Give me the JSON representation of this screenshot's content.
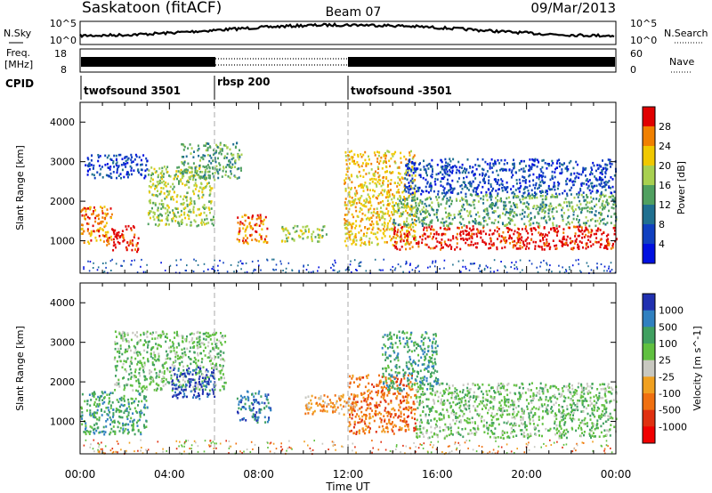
{
  "header": {
    "station": "Saskatoon (fitACF)",
    "beam": "Beam 07",
    "date": "09/Mar/2013"
  },
  "strips": {
    "nsky_label": "N.Sky",
    "nsky_ticks": [
      "10^5",
      "10^0"
    ],
    "nsearch_label": "N.Search",
    "nsearch_ticks": [
      "10^5",
      "10^0"
    ],
    "freq_label": "Freq.",
    "freq_unit": "[MHz]",
    "freq_ticks": [
      "18",
      "8"
    ],
    "nave_label": "Nave",
    "nave_ticks": [
      "60",
      "0"
    ],
    "cpid_label": "CPID",
    "cpid_segments": [
      {
        "label": "twofsound 3501",
        "start_h": 0,
        "end_h": 6
      },
      {
        "label": "rbsp 200",
        "start_h": 6,
        "end_h": 12
      },
      {
        "label": "twofsound -3501",
        "start_h": 12,
        "end_h": 24
      }
    ]
  },
  "power_panel": {
    "colorbar_title": "Power [dB]",
    "colorbar_levels": [
      "28",
      "24",
      "20",
      "16",
      "12",
      "8",
      "4"
    ],
    "colors": [
      "#e00000",
      "#f08000",
      "#f0c800",
      "#a8d050",
      "#50a060",
      "#207090",
      "#1040c0",
      "#0010e0"
    ]
  },
  "velocity_panel": {
    "colorbar_title": "Velocity [m s^-1]",
    "colorbar_levels": [
      "1000",
      "500",
      "100",
      "25",
      "-25",
      "-100",
      "-500",
      "-1000"
    ],
    "colors": [
      "#2030b0",
      "#3080c0",
      "#40a060",
      "#60c040",
      "#c8c8c0",
      "#f0a020",
      "#f07010",
      "#e03010",
      "#f00000"
    ]
  },
  "chart_data": [
    {
      "type": "heatmap",
      "title": "Power",
      "xlabel": "Time UT",
      "ylabel": "Slant Range [km]",
      "x_ticks": [
        "00:00",
        "04:00",
        "08:00",
        "12:00",
        "16:00",
        "20:00",
        "00:00"
      ],
      "y_ticks": [
        "4000",
        "3000",
        "2000",
        "1000"
      ],
      "xlim_hours": [
        0,
        24
      ],
      "ylim_km": [
        180,
        4500
      ],
      "series": [
        {
          "t0": 0.0,
          "t1": 1.4,
          "r0": 900,
          "r1": 1900,
          "level": "24"
        },
        {
          "t0": 1.4,
          "t1": 2.6,
          "r0": 750,
          "r1": 1400,
          "level": "28"
        },
        {
          "t0": 0.2,
          "t1": 3.0,
          "r0": 2600,
          "r1": 3200,
          "level": "4"
        },
        {
          "t0": 3.0,
          "t1": 6.0,
          "r0": 1400,
          "r1": 2900,
          "level": "16"
        },
        {
          "t0": 4.5,
          "t1": 7.2,
          "r0": 2600,
          "r1": 3500,
          "level": "12"
        },
        {
          "t0": 7.0,
          "t1": 8.4,
          "r0": 950,
          "r1": 1700,
          "level": "24"
        },
        {
          "t0": 9.0,
          "t1": 11.0,
          "r0": 1000,
          "r1": 1400,
          "level": "16"
        },
        {
          "t0": 11.8,
          "t1": 15.0,
          "r0": 900,
          "r1": 3300,
          "level": "20"
        },
        {
          "t0": 14.0,
          "t1": 24.0,
          "r0": 800,
          "r1": 1400,
          "level": "28"
        },
        {
          "t0": 14.0,
          "t1": 24.0,
          "r0": 1400,
          "r1": 2200,
          "level": "12"
        },
        {
          "t0": 14.5,
          "t1": 24.0,
          "r0": 2200,
          "r1": 3100,
          "level": "4"
        }
      ]
    },
    {
      "type": "heatmap",
      "title": "Velocity",
      "xlabel": "Time UT",
      "ylabel": "Slant Range [km]",
      "x_ticks": [
        "00:00",
        "04:00",
        "08:00",
        "12:00",
        "16:00",
        "20:00",
        "00:00"
      ],
      "y_ticks": [
        "4000",
        "3000",
        "2000",
        "1000"
      ],
      "xlim_hours": [
        0,
        24
      ],
      "ylim_km": [
        180,
        4500
      ],
      "series": [
        {
          "t0": 0.0,
          "t1": 3.0,
          "r0": 700,
          "r1": 1800,
          "level": "100"
        },
        {
          "t0": 1.5,
          "t1": 6.5,
          "r0": 1800,
          "r1": 3300,
          "level": "25"
        },
        {
          "t0": 4.0,
          "t1": 6.0,
          "r0": 1600,
          "r1": 2400,
          "level": "1000"
        },
        {
          "t0": 7.0,
          "t1": 8.5,
          "r0": 1000,
          "r1": 1800,
          "level": "500"
        },
        {
          "t0": 10.0,
          "t1": 12.5,
          "r0": 1200,
          "r1": 1700,
          "level": "-100"
        },
        {
          "t0": 12.0,
          "t1": 15.0,
          "r0": 700,
          "r1": 2200,
          "level": "-500"
        },
        {
          "t0": 15.0,
          "t1": 24.0,
          "r0": 600,
          "r1": 2000,
          "level": "25"
        },
        {
          "t0": 13.5,
          "t1": 16.0,
          "r0": 1800,
          "r1": 3300,
          "level": "100"
        }
      ]
    }
  ]
}
